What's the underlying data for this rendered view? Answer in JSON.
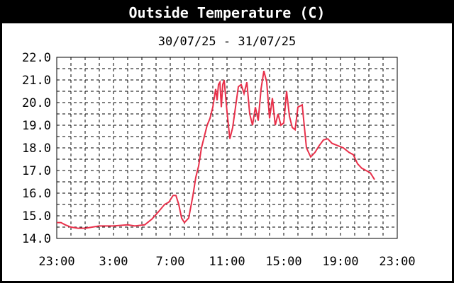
{
  "chart_data": {
    "type": "line",
    "title": "Outside Temperature (C)",
    "subtitle": "30/07/25 - 31/07/25",
    "xlabel": "",
    "ylabel": "",
    "x_tick_labels": [
      "23:00",
      "3:00",
      "7:00",
      "11:00",
      "15:00",
      "19:00",
      "23:00"
    ],
    "y_tick_labels": [
      "14.0",
      "15.0",
      "16.0",
      "17.0",
      "18.0",
      "19.0",
      "20.0",
      "21.0",
      "22.0"
    ],
    "ylim": [
      14.0,
      22.0
    ],
    "xlim_hours_from_start": [
      0,
      24
    ],
    "grid": true,
    "colors": {
      "background": "#000000",
      "plot_background": "#ffffff",
      "line": "#e8304a",
      "text_title": "#ffffff",
      "text": "#000000"
    },
    "series": [
      {
        "values": [
          [
            0.0,
            14.7
          ],
          [
            0.3,
            14.7
          ],
          [
            0.6,
            14.6
          ],
          [
            1.0,
            14.5
          ],
          [
            1.5,
            14.45
          ],
          [
            2.0,
            14.45
          ],
          [
            2.5,
            14.5
          ],
          [
            3.0,
            14.55
          ],
          [
            4.0,
            14.55
          ],
          [
            5.0,
            14.6
          ],
          [
            5.5,
            14.55
          ],
          [
            6.2,
            14.6
          ],
          [
            6.7,
            14.85
          ],
          [
            7.2,
            15.2
          ],
          [
            7.6,
            15.5
          ],
          [
            7.9,
            15.6
          ],
          [
            8.2,
            15.9
          ],
          [
            8.4,
            15.9
          ],
          [
            8.6,
            15.5
          ],
          [
            8.8,
            14.9
          ],
          [
            9.0,
            14.7
          ],
          [
            9.3,
            14.9
          ],
          [
            9.6,
            15.9
          ],
          [
            9.8,
            16.7
          ],
          [
            10.0,
            17.2
          ],
          [
            10.2,
            18.0
          ],
          [
            10.4,
            18.5
          ],
          [
            10.6,
            19.0
          ],
          [
            10.8,
            19.3
          ],
          [
            11.0,
            19.8
          ],
          [
            11.1,
            20.2
          ],
          [
            11.2,
            20.6
          ],
          [
            11.3,
            20.1
          ],
          [
            11.4,
            20.8
          ],
          [
            11.5,
            20.9
          ],
          [
            11.6,
            19.8
          ],
          [
            11.7,
            20.8
          ],
          [
            11.8,
            21.0
          ],
          [
            12.0,
            19.6
          ],
          [
            12.2,
            18.4
          ],
          [
            12.4,
            18.9
          ],
          [
            12.6,
            19.8
          ],
          [
            12.8,
            20.7
          ],
          [
            13.0,
            20.8
          ],
          [
            13.2,
            20.4
          ],
          [
            13.4,
            20.9
          ],
          [
            13.6,
            19.5
          ],
          [
            13.8,
            19.0
          ],
          [
            14.0,
            19.8
          ],
          [
            14.2,
            19.2
          ],
          [
            14.4,
            20.6
          ],
          [
            14.6,
            21.4
          ],
          [
            14.8,
            20.9
          ],
          [
            15.0,
            19.3
          ],
          [
            15.2,
            20.2
          ],
          [
            15.4,
            19.0
          ],
          [
            15.6,
            19.5
          ],
          [
            15.8,
            19.0
          ],
          [
            16.0,
            19.1
          ],
          [
            16.2,
            20.5
          ],
          [
            16.4,
            19.4
          ],
          [
            16.6,
            18.9
          ],
          [
            16.8,
            18.8
          ],
          [
            17.0,
            19.8
          ],
          [
            17.3,
            19.9
          ],
          [
            17.6,
            18.0
          ],
          [
            17.9,
            17.6
          ],
          [
            18.2,
            17.8
          ],
          [
            18.5,
            18.1
          ],
          [
            18.8,
            18.35
          ],
          [
            19.1,
            18.4
          ],
          [
            19.4,
            18.2
          ],
          [
            19.8,
            18.1
          ],
          [
            20.2,
            18.0
          ],
          [
            20.6,
            17.8
          ],
          [
            20.9,
            17.7
          ],
          [
            21.2,
            17.3
          ],
          [
            21.5,
            17.1
          ],
          [
            21.8,
            17.0
          ],
          [
            22.1,
            16.9
          ],
          [
            22.4,
            16.6
          ]
        ]
      }
    ]
  }
}
